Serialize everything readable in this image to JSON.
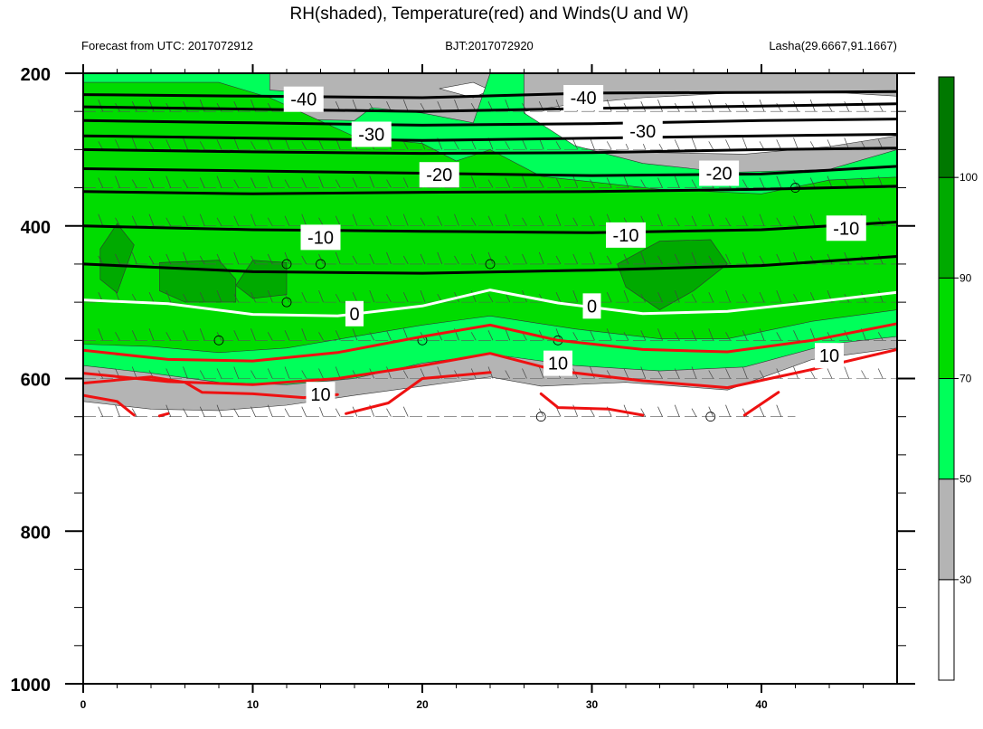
{
  "title": "RH(shaded), Temperature(red) and Winds(U and W)",
  "subtitle_left": "Forecast from UTC: 2017072912",
  "subtitle_center": "BJT:2017072920",
  "subtitle_right": "Lasha(29.6667,91.1667)",
  "colors": {
    "rh_lt30": "#ffffff",
    "rh_30_50": "#b4b4b4",
    "rh_50_70": "#00ff5a",
    "rh_70_90": "#00dc00",
    "rh_90_100": "#00aa00",
    "rh_gt100": "#007800",
    "temp_positive": "#ee1111",
    "temp_zero": "#ffffff",
    "temp_negative": "#000000"
  },
  "chart_data": {
    "type": "contour",
    "x_ticks": [
      "0",
      "10",
      "20",
      "30",
      "40"
    ],
    "y_ticks": [
      "200",
      "400",
      "600",
      "800",
      "1000"
    ],
    "xlim": [
      0,
      48
    ],
    "ylim": [
      1000,
      200
    ],
    "colorbar": {
      "levels": [
        "30",
        "50",
        "70",
        "90",
        "100"
      ],
      "fills": [
        "#ffffff",
        "#b4b4b4",
        "#00ff5a",
        "#00dc00",
        "#00aa00",
        "#007800"
      ]
    },
    "rh_regions": [
      {
        "fill": "#b4b4b4",
        "points": [
          [
            0,
            200
          ],
          [
            48,
            200
          ],
          [
            48,
            560
          ],
          [
            43,
            575
          ],
          [
            38,
            615
          ],
          [
            32,
            605
          ],
          [
            27,
            610
          ],
          [
            24,
            598
          ],
          [
            20,
            610
          ],
          [
            16,
            622
          ],
          [
            12,
            635
          ],
          [
            8,
            642
          ],
          [
            4,
            640
          ],
          [
            0,
            630
          ]
        ]
      },
      {
        "fill": "#ffffff",
        "points": [
          [
            29,
            240
          ],
          [
            33,
            232
          ],
          [
            39,
            225
          ],
          [
            45,
            226
          ],
          [
            48,
            230
          ],
          [
            48,
            282
          ],
          [
            44,
            296
          ],
          [
            39,
            306
          ],
          [
            34,
            304
          ],
          [
            30,
            300
          ],
          [
            27,
            290
          ],
          [
            26,
            250
          ]
        ]
      },
      {
        "fill": "#ffffff",
        "points": [
          [
            21,
            220
          ],
          [
            23,
            212
          ],
          [
            24,
            222
          ],
          [
            23,
            232
          ]
        ]
      },
      {
        "fill": "#00ff5a",
        "points": [
          [
            0,
            200
          ],
          [
            11,
            200
          ],
          [
            11,
            222
          ],
          [
            13,
            225
          ],
          [
            12,
            260
          ],
          [
            16,
            262
          ],
          [
            17,
            245
          ],
          [
            20,
            252
          ],
          [
            23,
            265
          ],
          [
            24,
            200
          ],
          [
            26,
            200
          ],
          [
            26,
            252
          ],
          [
            29,
            295
          ],
          [
            33,
            318
          ],
          [
            38,
            330
          ],
          [
            44,
            326
          ],
          [
            48,
            300
          ],
          [
            48,
            545
          ],
          [
            44,
            555
          ],
          [
            39,
            585
          ],
          [
            34,
            590
          ],
          [
            29,
            583
          ],
          [
            24,
            568
          ],
          [
            20,
            580
          ],
          [
            16,
            600
          ],
          [
            12,
            608
          ],
          [
            8,
            605
          ],
          [
            4,
            593
          ],
          [
            0,
            583
          ]
        ]
      },
      {
        "fill": "#00dc00",
        "points": [
          [
            0,
            212
          ],
          [
            8,
            212
          ],
          [
            11,
            232
          ],
          [
            16,
            283
          ],
          [
            20,
            292
          ],
          [
            22,
            315
          ],
          [
            24,
            300
          ],
          [
            27,
            335
          ],
          [
            34,
            352
          ],
          [
            40,
            358
          ],
          [
            44,
            340
          ],
          [
            48,
            336
          ],
          [
            48,
            510
          ],
          [
            43,
            525
          ],
          [
            38,
            548
          ],
          [
            34,
            548
          ],
          [
            29,
            535
          ],
          [
            24,
            518
          ],
          [
            20,
            530
          ],
          [
            16,
            545
          ],
          [
            12,
            560
          ],
          [
            8,
            566
          ],
          [
            4,
            558
          ],
          [
            0,
            555
          ]
        ]
      },
      {
        "fill": "#00aa00",
        "points": [
          [
            2,
            397
          ],
          [
            3,
            425
          ],
          [
            2,
            488
          ],
          [
            1,
            470
          ],
          [
            1,
            430
          ]
        ]
      },
      {
        "fill": "#00aa00",
        "points": [
          [
            4.5,
            448
          ],
          [
            8,
            445
          ],
          [
            9,
            470
          ],
          [
            9,
            500
          ],
          [
            6,
            500
          ],
          [
            4.5,
            485
          ]
        ]
      },
      {
        "fill": "#00aa00",
        "points": [
          [
            9,
            478
          ],
          [
            10,
            445
          ],
          [
            12,
            448
          ],
          [
            12,
            490
          ],
          [
            10,
            495
          ]
        ]
      },
      {
        "fill": "#00aa00",
        "points": [
          [
            31.5,
            450
          ],
          [
            34,
            420
          ],
          [
            37,
            418
          ],
          [
            38,
            450
          ],
          [
            36,
            485
          ],
          [
            34,
            510
          ],
          [
            32,
            480
          ]
        ]
      }
    ],
    "temperature_contours": [
      {
        "level": "-40",
        "points": [
          [
            0,
            228
          ],
          [
            10,
            230
          ],
          [
            20,
            232
          ],
          [
            30,
            226
          ],
          [
            40,
            225
          ],
          [
            48,
            224
          ]
        ]
      },
      {
        "level": "-40",
        "points": [
          [
            0,
            244
          ],
          [
            10,
            247
          ],
          [
            20,
            250
          ],
          [
            30,
            246
          ],
          [
            40,
            243
          ],
          [
            48,
            240
          ]
        ]
      },
      {
        "level": "-30",
        "points": [
          [
            0,
            262
          ],
          [
            10,
            265
          ],
          [
            20,
            268
          ],
          [
            30,
            266
          ],
          [
            40,
            262
          ],
          [
            48,
            260
          ]
        ]
      },
      {
        "level": "-30",
        "points": [
          [
            0,
            282
          ],
          [
            10,
            285
          ],
          [
            20,
            288
          ],
          [
            30,
            285
          ],
          [
            40,
            282
          ],
          [
            48,
            280
          ]
        ]
      },
      {
        "level": "-20",
        "points": [
          [
            0,
            300
          ],
          [
            10,
            303
          ],
          [
            20,
            305
          ],
          [
            30,
            304
          ],
          [
            40,
            300
          ],
          [
            48,
            298
          ]
        ]
      },
      {
        "level": "-20",
        "points": [
          [
            0,
            325
          ],
          [
            10,
            328
          ],
          [
            20,
            331
          ],
          [
            30,
            334
          ],
          [
            40,
            332
          ],
          [
            48,
            322
          ]
        ]
      },
      {
        "level": "-20",
        "points": [
          [
            0,
            355
          ],
          [
            10,
            358
          ],
          [
            20,
            356
          ],
          [
            30,
            355
          ],
          [
            40,
            352
          ],
          [
            48,
            348
          ]
        ]
      },
      {
        "level": "-10",
        "points": [
          [
            0,
            400
          ],
          [
            10,
            405
          ],
          [
            20,
            407
          ],
          [
            30,
            409
          ],
          [
            40,
            405
          ],
          [
            48,
            395
          ]
        ]
      },
      {
        "level": "-10",
        "points": [
          [
            0,
            450
          ],
          [
            10,
            460
          ],
          [
            20,
            462
          ],
          [
            30,
            458
          ],
          [
            40,
            452
          ],
          [
            48,
            440
          ]
        ]
      },
      {
        "level": "0",
        "points": [
          [
            0,
            497
          ],
          [
            5,
            502
          ],
          [
            10,
            516
          ],
          [
            15,
            518
          ],
          [
            20,
            505
          ],
          [
            24,
            484
          ],
          [
            28,
            501
          ],
          [
            33,
            515
          ],
          [
            38,
            512
          ],
          [
            43,
            500
          ],
          [
            48,
            487
          ]
        ]
      },
      {
        "level": "10",
        "points": [
          [
            0,
            563
          ],
          [
            5,
            575
          ],
          [
            10,
            577
          ],
          [
            15,
            566
          ],
          [
            20,
            545
          ],
          [
            24,
            530
          ],
          [
            28,
            550
          ],
          [
            33,
            562
          ],
          [
            38,
            565
          ],
          [
            43,
            550
          ],
          [
            48,
            528
          ]
        ]
      },
      {
        "level": "10",
        "points": [
          [
            0,
            593
          ],
          [
            5,
            604
          ],
          [
            10,
            608
          ],
          [
            15,
            600
          ],
          [
            20,
            583
          ],
          [
            24,
            567
          ],
          [
            28,
            590
          ],
          [
            33,
            603
          ],
          [
            38,
            612
          ],
          [
            43,
            588
          ],
          [
            48,
            562
          ]
        ]
      },
      {
        "level": "10",
        "points": [
          [
            0,
            606
          ],
          [
            4,
            598
          ],
          [
            6,
            605
          ],
          [
            7,
            618
          ],
          [
            10,
            620
          ],
          [
            13,
            625
          ],
          [
            15,
            621
          ]
        ]
      },
      {
        "level": "10",
        "points": [
          [
            0,
            622
          ],
          [
            2,
            630
          ],
          [
            3,
            648
          ]
        ]
      },
      {
        "level": "10",
        "points": [
          [
            4.5,
            649
          ],
          [
            5,
            646
          ]
        ]
      },
      {
        "level": "10",
        "points": [
          [
            15.5,
            646
          ],
          [
            18,
            632
          ],
          [
            20,
            600
          ],
          [
            24,
            592
          ]
        ]
      },
      {
        "level": "10",
        "points": [
          [
            27,
            620
          ],
          [
            28,
            638
          ],
          [
            31,
            640
          ],
          [
            33,
            648
          ]
        ]
      },
      {
        "level": "10",
        "points": [
          [
            39,
            648
          ],
          [
            41,
            618
          ]
        ]
      }
    ],
    "contour_labels": [
      {
        "text": "-40",
        "x": 13,
        "y": 234
      },
      {
        "text": "-40",
        "x": 29.5,
        "y": 232
      },
      {
        "text": "-30",
        "x": 17,
        "y": 280
      },
      {
        "text": "-30",
        "x": 33,
        "y": 276
      },
      {
        "text": "-20",
        "x": 21,
        "y": 333
      },
      {
        "text": "-20",
        "x": 37.5,
        "y": 331
      },
      {
        "text": "-10",
        "x": 14,
        "y": 415
      },
      {
        "text": "-10",
        "x": 32,
        "y": 412
      },
      {
        "text": "-10",
        "x": 45,
        "y": 403
      },
      {
        "text": "0",
        "x": 16,
        "y": 515
      },
      {
        "text": "0",
        "x": 30,
        "y": 505
      },
      {
        "text": "10",
        "x": 14,
        "y": 621
      },
      {
        "text": "10",
        "x": 28,
        "y": 580
      },
      {
        "text": "10",
        "x": 44,
        "y": 570
      }
    ],
    "wind_calm_circles": [
      [
        12,
        450
      ],
      [
        14,
        450
      ],
      [
        12,
        500
      ],
      [
        8,
        550
      ],
      [
        20,
        550
      ],
      [
        24,
        450
      ],
      [
        28,
        550
      ],
      [
        27,
        650
      ],
      [
        37,
        650
      ],
      [
        42,
        350
      ]
    ],
    "wind_rows": [
      "200",
      "250",
      "300",
      "350",
      "400",
      "450",
      "500",
      "550",
      "600",
      "650"
    ]
  }
}
